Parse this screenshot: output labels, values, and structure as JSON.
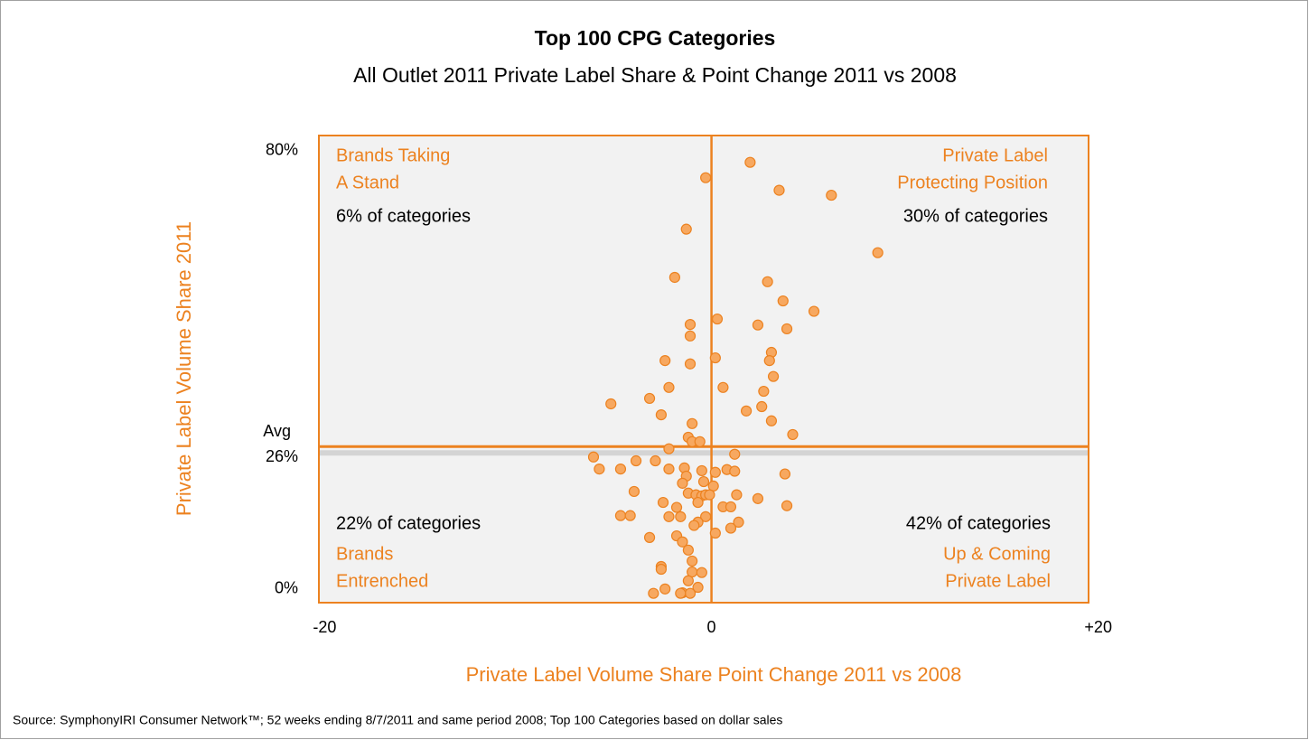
{
  "chart_data": {
    "type": "scatter",
    "title": "Top 100 CPG Categories",
    "subtitle": "All Outlet 2011 Private Label Share & Point Change 2011 vs 2008",
    "x_label": "Private Label Volume Share Point Change 2011 vs 2008",
    "y_label": "Private Label Volume Share 2011",
    "source": "Source:  SymphonyIRI Consumer Network™; 52 weeks ending 8/7/2011 and same period 2008; Top 100 Categories based on dollar sales",
    "xlim": [
      -20.3,
      19.5
    ],
    "ylim": [
      -2.5,
      82.8
    ],
    "xticks": [
      -20,
      0,
      {
        "value": 20,
        "label": "+20"
      }
    ],
    "yticks": [
      {
        "value": 80,
        "label": "80%"
      },
      {
        "value": 26,
        "label": "26%"
      },
      {
        "value": 0,
        "label": "0%"
      }
    ],
    "avg_label": "Avg",
    "color": "#f7a860",
    "edge_color": "#ec8220",
    "quadrants": [
      {
        "title": [
          "Brands Taking",
          "A Stand"
        ],
        "share": "6% of categories"
      },
      {
        "title": [
          "Private Label",
          "Protecting Position"
        ],
        "share": "30% of categories"
      },
      {
        "title": [
          "Brands",
          "Entrenched"
        ],
        "share": "22% of categories"
      },
      {
        "title": [
          "Up & Coming",
          "Private Label"
        ],
        "share": "42% of categories"
      }
    ],
    "x": [
      2.0,
      -0.3,
      3.5,
      6.2,
      -1.3,
      8.6,
      -1.9,
      2.9,
      3.7,
      5.3,
      0.3,
      -1.1,
      2.4,
      3.9,
      -1.1,
      3.1,
      0.2,
      -2.4,
      3.0,
      -1.1,
      3.2,
      -2.2,
      0.6,
      2.7,
      -3.2,
      -5.2,
      2.6,
      1.8,
      -2.6,
      3.1,
      -1.0,
      4.2,
      -1.2,
      -1.0,
      -0.6,
      -2.2,
      -6.1,
      1.2,
      -3.9,
      -2.9,
      -1.4,
      -5.8,
      -4.7,
      -2.2,
      0.8,
      -1.3,
      -0.5,
      0.2,
      1.2,
      3.8,
      -0.4,
      -1.5,
      0.1,
      -4.0,
      -1.2,
      -0.8,
      -0.5,
      -0.3,
      -0.1,
      1.3,
      2.4,
      -2.5,
      -0.7,
      3.9,
      -1.8,
      0.6,
      1.0,
      -2.2,
      -1.6,
      -0.3,
      -4.7,
      -4.2,
      -0.7,
      -0.9,
      1.4,
      1.0,
      0.2,
      -3.2,
      -1.8,
      -1.5,
      -1.2,
      -1.0,
      -2.6,
      -2.6,
      -1.0,
      -0.5,
      -1.2,
      -0.7,
      -2.4,
      -3.0,
      -1.5,
      -1.1,
      -1.6
    ],
    "values": [
      77.9,
      75.1,
      72.8,
      71.9,
      65.7,
      61.4,
      56.9,
      56.1,
      52.6,
      50.7,
      49.3,
      48.3,
      48.2,
      47.5,
      46.2,
      43.2,
      42.2,
      41.7,
      41.7,
      41.1,
      38.8,
      36.8,
      36.8,
      36.1,
      34.8,
      33.8,
      33.3,
      32.5,
      31.8,
      30.7,
      30.2,
      28.2,
      27.7,
      26.9,
      26.9,
      25.6,
      24.1,
      24.6,
      23.4,
      23.4,
      22.1,
      21.9,
      21.9,
      21.9,
      21.8,
      20.6,
      21.6,
      21.3,
      21.5,
      21.0,
      19.6,
      19.3,
      18.8,
      17.8,
      17.5,
      17.2,
      17.0,
      17.2,
      17.2,
      17.2,
      16.5,
      15.8,
      15.8,
      15.2,
      14.9,
      15.0,
      15.0,
      13.2,
      13.2,
      13.2,
      13.4,
      13.4,
      12.2,
      11.6,
      12.2,
      11.1,
      10.2,
      9.4,
      9.7,
      8.6,
      7.1,
      5.1,
      4.1,
      3.6,
      3.1,
      3.0,
      1.5,
      0.3,
      0.0,
      -0.8,
      -0.7,
      -0.8,
      -0.8
    ]
  }
}
